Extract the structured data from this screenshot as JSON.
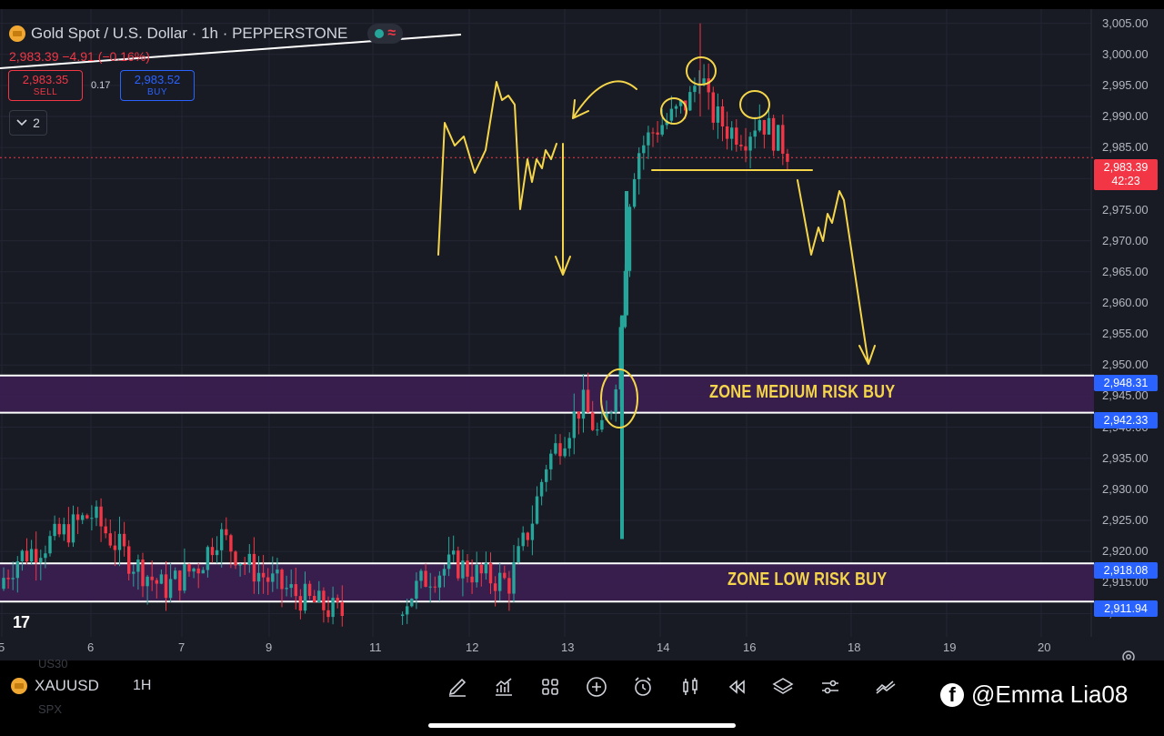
{
  "header": {
    "title": "Gold Spot / U.S. Dollar · 1h · PEPPERSTONE",
    "price_line": "2,983.39  −4.91 (−0.16%)"
  },
  "trade": {
    "sell_price": "2,983.35",
    "sell_label": "SELL",
    "spread": "0.17",
    "buy_price": "2,983.52",
    "buy_label": "BUY"
  },
  "indicators_count": "2",
  "price_axis": [
    "3,005.00",
    "3,000.00",
    "2,995.00",
    "2,990.00",
    "2,985.00",
    "2,980.00",
    "2,975.00",
    "2,970.00",
    "2,965.00",
    "2,960.00",
    "2,955.00",
    "2,950.00",
    "2,945.00",
    "2,940.00",
    "2,935.00",
    "2,930.00",
    "2,925.00",
    "2,920.00",
    "2,915.00",
    "2,910.00"
  ],
  "price_tags": {
    "current_price": "2,983.39",
    "countdown": "42:23",
    "zone_medium_top": "2,948.31",
    "zone_medium_bottom": "2,942.33",
    "zone_low_top": "2,918.08",
    "zone_low_bottom": "2,911.94"
  },
  "zones": {
    "medium_label": "ZONE MEDIUM RISK BUY",
    "low_label": "ZONE LOW RISK BUY"
  },
  "time_axis": [
    "5",
    "6",
    "7",
    "9",
    "11",
    "12",
    "13",
    "14",
    "16",
    "18",
    "19",
    "20"
  ],
  "bottom": {
    "symbol": "XAUUSD",
    "timeframe": "1H",
    "ghost_top": "US30",
    "ghost_bottom": "SPX",
    "watermark": "@Emma Lia08"
  },
  "colors": {
    "background": "#191b24",
    "up": "#26a69a",
    "down": "#f23645",
    "zone_fill": "#3d1f55",
    "annotation": "#f5d64a",
    "blue": "#2962ff"
  },
  "toolbar_icons": [
    "brush-icon",
    "indicators-icon",
    "templates-icon",
    "add-icon",
    "alert-icon",
    "candle-type-icon",
    "replay-icon",
    "layers-icon",
    "settings-sliders-icon",
    "compare-icon"
  ]
}
